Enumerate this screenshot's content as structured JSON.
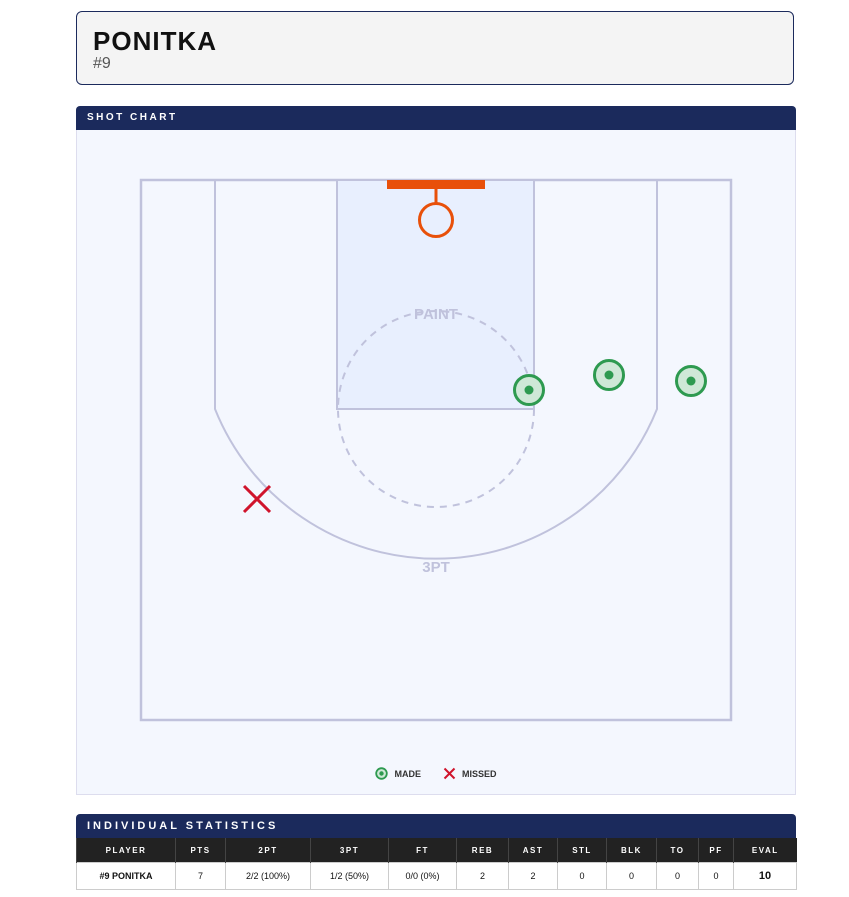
{
  "player": {
    "name": "PONITKA",
    "number": "#9"
  },
  "shot_chart": {
    "title": "SHOT CHART",
    "paint_label": "PAINT",
    "three_label": "3PT",
    "legend": {
      "made": "MADE",
      "missed": "MISSED"
    },
    "shots": [
      {
        "result": "made"
      },
      {
        "result": "made"
      },
      {
        "result": "made"
      },
      {
        "result": "missed"
      }
    ],
    "colors": {
      "made": "#2e9a50",
      "missed": "#d0142c",
      "hoop": "#e8500a",
      "lines": "#c0c2dc",
      "paint": "#e8effe",
      "header": "#1b2a5c"
    }
  },
  "stats": {
    "title": "INDIVIDUAL STATISTICS",
    "columns": [
      "PLAYER",
      "PTS",
      "2PT",
      "3PT",
      "FT",
      "REB",
      "AST",
      "STL",
      "BLK",
      "TO",
      "PF",
      "EVAL"
    ],
    "rows": [
      [
        "#9 PONITKA",
        "7",
        "2/2 (100%)",
        "1/2 (50%)",
        "0/0 (0%)",
        "2",
        "2",
        "0",
        "0",
        "0",
        "0",
        "10"
      ]
    ]
  }
}
